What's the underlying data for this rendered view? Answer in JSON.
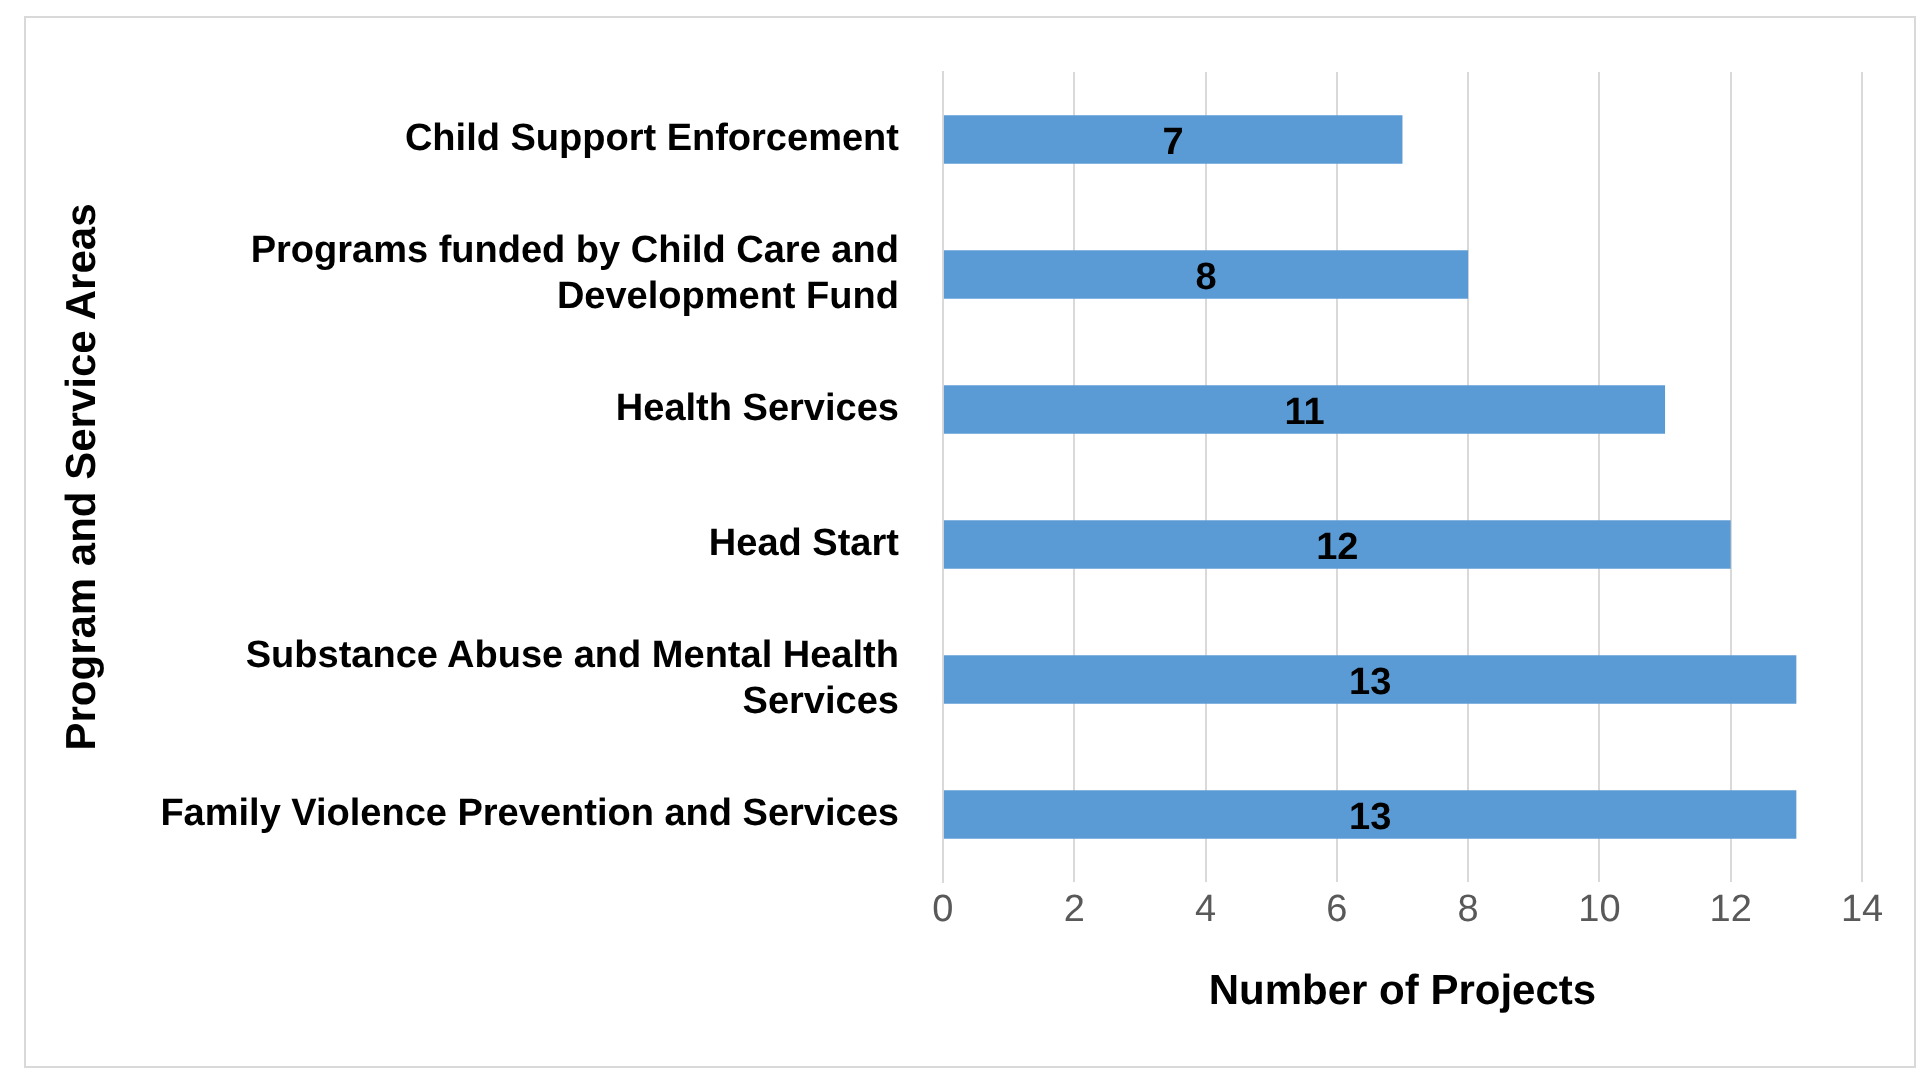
{
  "chart_data": {
    "type": "bar",
    "orientation": "horizontal",
    "xlabel": "Number of Projects",
    "ylabel": "Program and Service Areas",
    "categories": [
      "Child Support Enforcement",
      "Programs funded by Child Care and Development Fund",
      "Health Services",
      "Head Start",
      "Substance Abuse and Mental Health Services",
      "Family Violence Prevention and Services"
    ],
    "values": [
      7,
      8,
      11,
      12,
      13,
      13
    ],
    "color": "#5b9bd5",
    "xlim": [
      0,
      14
    ],
    "xticks": [
      0,
      2,
      4,
      6,
      8,
      10,
      12,
      14
    ],
    "grid": "x",
    "data_labels": true,
    "legend": false
  }
}
